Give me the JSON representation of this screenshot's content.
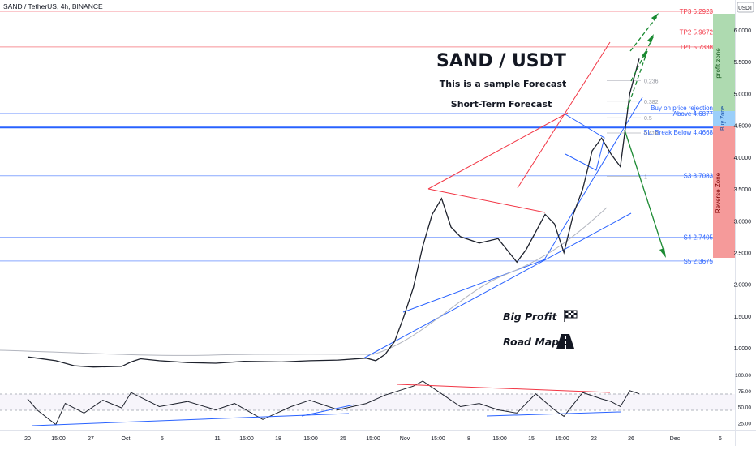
{
  "header": {
    "symbol_line": "SAND / TetherUS, 4h, BINANCE",
    "quote_currency": "USDT"
  },
  "annotations": {
    "title": "SAND / USDT",
    "subtitle": "This is a sample Forecast",
    "horizon": "Short-Term Forecast",
    "big_profit": "Big Profit",
    "road_map": "Road Map",
    "buy_note": "Buy on price rejection",
    "buy_zone": "Buy Zone",
    "profit_zone": "profit zone",
    "reverse_zone": "Reverse Zone"
  },
  "chart_data": {
    "type": "line",
    "symbol": "SAND / TetherUS",
    "timeframe": "4h",
    "exchange": "BINANCE",
    "y_axis": {
      "range": [
        0.62,
        6.42
      ],
      "ticks": [
        "6.0000",
        "5.5000",
        "5.0000",
        "4.5000",
        "4.0000",
        "3.5000",
        "3.0000",
        "2.5000",
        "2.0000",
        "1.5000",
        "1.0000"
      ]
    },
    "x_axis": {
      "labels": [
        "20",
        "15:00",
        "27",
        "Oct",
        "5",
        "11",
        "15:00",
        "18",
        "15:00",
        "25",
        "15:00",
        "Nov",
        "15:00",
        "8",
        "15:00",
        "15",
        "15:00",
        "22",
        "26",
        "Dec",
        "6"
      ]
    },
    "levels": [
      {
        "label": "TP3 6.2923",
        "value": 6.2923,
        "color": "#f23645"
      },
      {
        "label": "TP2 5.9672",
        "value": 5.9672,
        "color": "#f23645"
      },
      {
        "label": "TP1 5.7338",
        "value": 5.7338,
        "color": "#f23645"
      },
      {
        "label": "Above 4.6877",
        "value": 4.6877,
        "color": "#2962ff"
      },
      {
        "label": "SL: Break Below 4.4668",
        "value": 4.4668,
        "color": "#2962ff"
      },
      {
        "label": "S3 3.7083",
        "value": 3.7083,
        "color": "#2962ff"
      },
      {
        "label": "S4 2.7405",
        "value": 2.7405,
        "color": "#2962ff"
      },
      {
        "label": "S5 2.3675",
        "value": 2.3675,
        "color": "#2962ff"
      }
    ],
    "fib_levels": [
      {
        "label": "0.236",
        "value": 5.2
      },
      {
        "label": "0.382",
        "value": 4.88
      },
      {
        "label": "0.5",
        "value": 4.62
      },
      {
        "label": "0.618",
        "value": 4.38
      },
      {
        "label": "1",
        "value": 3.7
      }
    ],
    "price_series": [
      {
        "t": "Sep 20",
        "v": 0.86
      },
      {
        "t": "Sep 21",
        "v": 0.84
      },
      {
        "t": "Sep 23",
        "v": 0.8
      },
      {
        "t": "Sep 25",
        "v": 0.72
      },
      {
        "t": "Sep 27",
        "v": 0.7
      },
      {
        "t": "Sep 30",
        "v": 0.71
      },
      {
        "t": "Oct 1",
        "v": 0.78
      },
      {
        "t": "Oct 2",
        "v": 0.83
      },
      {
        "t": "Oct 4",
        "v": 0.8
      },
      {
        "t": "Oct 7",
        "v": 0.77
      },
      {
        "t": "Oct 10",
        "v": 0.76
      },
      {
        "t": "Oct 13",
        "v": 0.79
      },
      {
        "t": "Oct 17",
        "v": 0.78
      },
      {
        "t": "Oct 20",
        "v": 0.8
      },
      {
        "t": "Oct 23",
        "v": 0.81
      },
      {
        "t": "Oct 26",
        "v": 0.84
      },
      {
        "t": "Oct 27",
        "v": 0.8
      },
      {
        "t": "Oct 28",
        "v": 0.9
      },
      {
        "t": "Oct 29",
        "v": 1.1
      },
      {
        "t": "Oct 30",
        "v": 1.5
      },
      {
        "t": "Oct 31",
        "v": 1.95
      },
      {
        "t": "Nov 1",
        "v": 2.6
      },
      {
        "t": "Nov 2",
        "v": 3.1
      },
      {
        "t": "Nov 3",
        "v": 3.35
      },
      {
        "t": "Nov 4",
        "v": 2.9
      },
      {
        "t": "Nov 5",
        "v": 2.75
      },
      {
        "t": "Nov 7",
        "v": 2.65
      },
      {
        "t": "Nov 9",
        "v": 2.72
      },
      {
        "t": "Nov 11",
        "v": 2.35
      },
      {
        "t": "Nov 12",
        "v": 2.55
      },
      {
        "t": "Nov 14",
        "v": 3.1
      },
      {
        "t": "Nov 15",
        "v": 2.95
      },
      {
        "t": "Nov 16",
        "v": 2.5
      },
      {
        "t": "Nov 17",
        "v": 3.1
      },
      {
        "t": "Nov 18",
        "v": 3.5
      },
      {
        "t": "Nov 19",
        "v": 4.1
      },
      {
        "t": "Nov 20",
        "v": 4.3
      },
      {
        "t": "Nov 21",
        "v": 4.05
      },
      {
        "t": "Nov 22",
        "v": 3.85
      },
      {
        "t": "Nov 23",
        "v": 5.0
      },
      {
        "t": "Nov 24",
        "v": 5.55
      }
    ],
    "rsi": {
      "ticks": [
        "100.00",
        "75.00",
        "50.00",
        "25.00"
      ],
      "range": [
        14,
        100
      ],
      "series": [
        {
          "t": "Sep 20",
          "v": 62
        },
        {
          "t": "Sep 21",
          "v": 45
        },
        {
          "t": "Sep 23",
          "v": 22
        },
        {
          "t": "Sep 24",
          "v": 55
        },
        {
          "t": "Sep 26",
          "v": 40
        },
        {
          "t": "Sep 28",
          "v": 60
        },
        {
          "t": "Sep 30",
          "v": 48
        },
        {
          "t": "Oct 1",
          "v": 72
        },
        {
          "t": "Oct 4",
          "v": 50
        },
        {
          "t": "Oct 7",
          "v": 58
        },
        {
          "t": "Oct 10",
          "v": 45
        },
        {
          "t": "Oct 12",
          "v": 55
        },
        {
          "t": "Oct 15",
          "v": 30
        },
        {
          "t": "Oct 18",
          "v": 50
        },
        {
          "t": "Oct 20",
          "v": 60
        },
        {
          "t": "Oct 23",
          "v": 45
        },
        {
          "t": "Oct 26",
          "v": 55
        },
        {
          "t": "Oct 28",
          "v": 68
        },
        {
          "t": "Oct 31",
          "v": 82
        },
        {
          "t": "Nov 1",
          "v": 90
        },
        {
          "t": "Nov 3",
          "v": 70
        },
        {
          "t": "Nov 5",
          "v": 50
        },
        {
          "t": "Nov 7",
          "v": 55
        },
        {
          "t": "Nov 9",
          "v": 45
        },
        {
          "t": "Nov 11",
          "v": 40
        },
        {
          "t": "Nov 13",
          "v": 70
        },
        {
          "t": "Nov 15",
          "v": 45
        },
        {
          "t": "Nov 16",
          "v": 35
        },
        {
          "t": "Nov 18",
          "v": 72
        },
        {
          "t": "Nov 20",
          "v": 62
        },
        {
          "t": "Nov 21",
          "v": 58
        },
        {
          "t": "Nov 22",
          "v": 50
        },
        {
          "t": "Nov 23",
          "v": 75
        },
        {
          "t": "Nov 24",
          "v": 70
        }
      ]
    }
  }
}
